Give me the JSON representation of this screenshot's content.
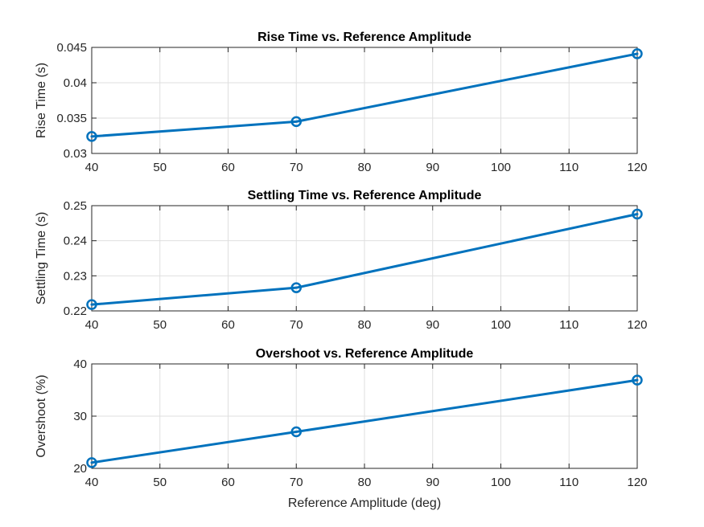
{
  "figure": {
    "background": "#ffffff",
    "line_color": "#0072bd"
  },
  "chart_data": [
    {
      "type": "line",
      "title": "Rise Time vs. Reference Amplitude",
      "xlabel": "",
      "ylabel": "Rise Time (s)",
      "xlim": [
        40,
        120
      ],
      "ylim": [
        0.03,
        0.045
      ],
      "xticks": [
        40,
        50,
        60,
        70,
        80,
        90,
        100,
        110,
        120
      ],
      "yticks": [
        0.03,
        0.035,
        0.04,
        0.045
      ],
      "xtick_labels": [
        "40",
        "50",
        "60",
        "70",
        "80",
        "90",
        "100",
        "110",
        "120"
      ],
      "ytick_labels": [
        "0.03",
        "0.035",
        "0.04",
        "0.045"
      ],
      "grid": true,
      "marker": "circle",
      "x": [
        40,
        70,
        120
      ],
      "y": [
        0.0324,
        0.0345,
        0.0441
      ]
    },
    {
      "type": "line",
      "title": "Settling Time vs. Reference Amplitude",
      "xlabel": "",
      "ylabel": "Settling Time (s)",
      "xlim": [
        40,
        120
      ],
      "ylim": [
        0.22,
        0.25
      ],
      "xticks": [
        40,
        50,
        60,
        70,
        80,
        90,
        100,
        110,
        120
      ],
      "yticks": [
        0.22,
        0.23,
        0.24,
        0.25
      ],
      "xtick_labels": [
        "40",
        "50",
        "60",
        "70",
        "80",
        "90",
        "100",
        "110",
        "120"
      ],
      "ytick_labels": [
        "0.22",
        "0.23",
        "0.24",
        "0.25"
      ],
      "grid": true,
      "marker": "circle",
      "x": [
        40,
        70,
        120
      ],
      "y": [
        0.2218,
        0.2266,
        0.2476
      ]
    },
    {
      "type": "line",
      "title": "Overshoot vs. Reference Amplitude",
      "xlabel": "Reference Amplitude (deg)",
      "ylabel": "Overshoot (%)",
      "xlim": [
        40,
        120
      ],
      "ylim": [
        20,
        40
      ],
      "xticks": [
        40,
        50,
        60,
        70,
        80,
        90,
        100,
        110,
        120
      ],
      "yticks": [
        20,
        30,
        40
      ],
      "xtick_labels": [
        "40",
        "50",
        "60",
        "70",
        "80",
        "90",
        "100",
        "110",
        "120"
      ],
      "ytick_labels": [
        "20",
        "30",
        "40"
      ],
      "grid": true,
      "marker": "circle",
      "x": [
        40,
        70,
        120
      ],
      "y": [
        21.1,
        27.0,
        36.9
      ]
    }
  ]
}
